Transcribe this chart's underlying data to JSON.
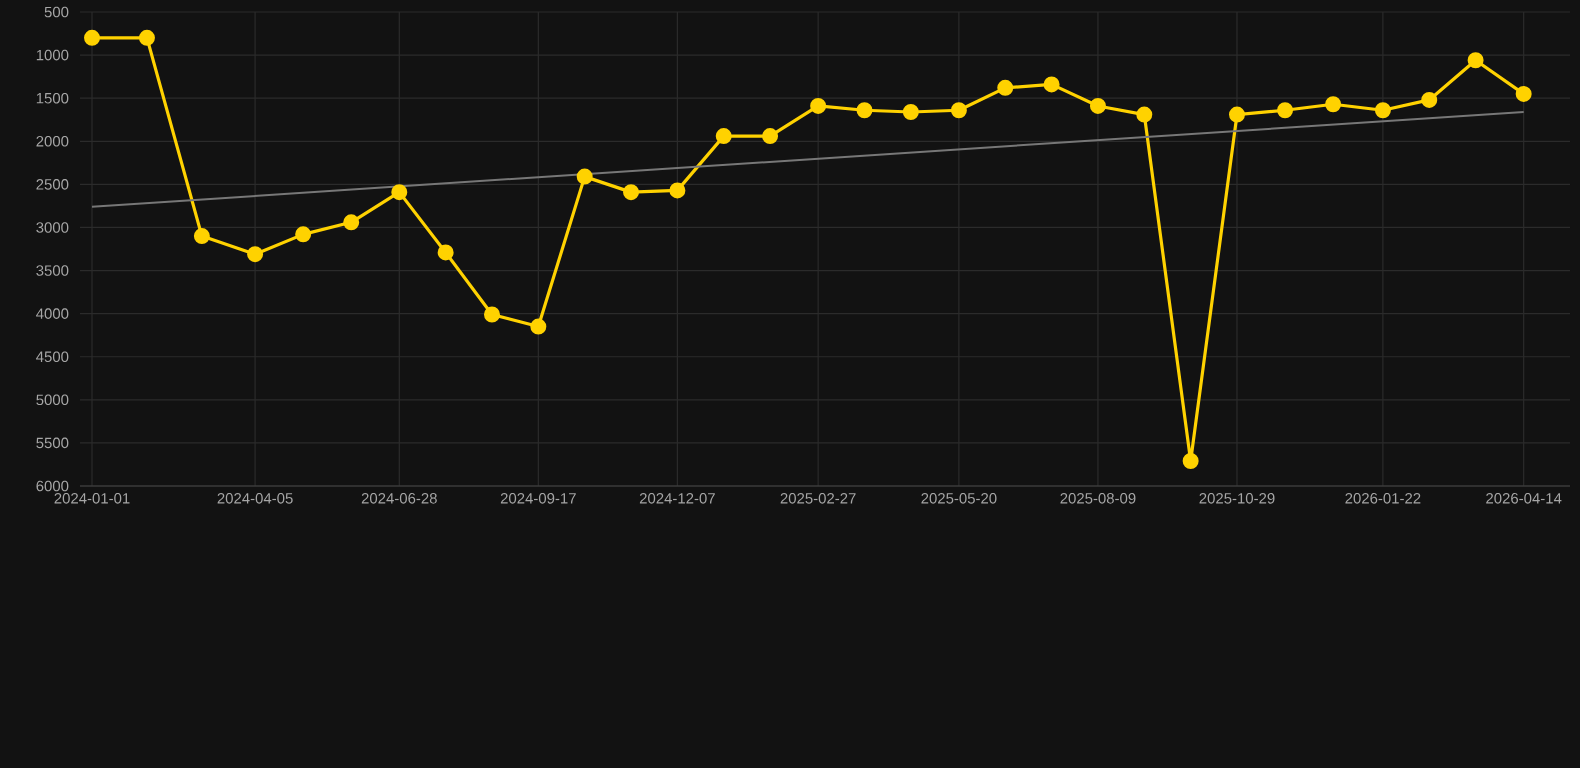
{
  "chart_data": {
    "type": "line",
    "x": [
      "2024-01-01",
      "2024-02-02",
      "2024-03-05",
      "2024-04-05",
      "2024-05-03",
      "2024-05-31",
      "2024-06-28",
      "2024-07-25",
      "2024-08-21",
      "2024-09-17",
      "2024-10-14",
      "2024-11-10",
      "2024-12-07",
      "2025-01-03",
      "2025-01-30",
      "2025-02-27",
      "2025-03-26",
      "2025-04-22",
      "2025-05-20",
      "2025-06-16",
      "2025-07-13",
      "2025-08-09",
      "2025-09-05",
      "2025-10-02",
      "2025-10-29",
      "2025-11-26",
      "2025-12-24",
      "2026-01-22",
      "2026-02-18",
      "2026-03-17",
      "2026-04-14"
    ],
    "series": [
      {
        "color": "#ffd200",
        "marker": "circle",
        "values": [
          800,
          800,
          3100,
          3310,
          3080,
          2940,
          2590,
          3290,
          4010,
          4150,
          2410,
          2590,
          2570,
          1940,
          1940,
          1590,
          1640,
          1660,
          1640,
          1380,
          1340,
          1590,
          1690,
          5710,
          1690,
          1640,
          1570,
          1640,
          1520,
          1060,
          1450
        ]
      },
      {
        "color": "#777777",
        "marker": "none",
        "x": [
          "2024-01-01",
          "2026-04-14"
        ],
        "values": [
          2760,
          1660
        ]
      }
    ],
    "xlim": [
      "2023-12-25",
      "2026-05-11"
    ],
    "xticks": [
      "2024-01-01",
      "2024-04-05",
      "2024-06-28",
      "2024-09-17",
      "2024-12-07",
      "2025-02-27",
      "2025-05-20",
      "2025-08-09",
      "2025-10-29",
      "2026-01-22",
      "2026-04-14"
    ],
    "ylim": [
      6000,
      500
    ],
    "yticks": [
      500,
      1000,
      1500,
      2000,
      2500,
      3000,
      3500,
      4000,
      4500,
      5000,
      5500,
      6000
    ],
    "grid": true
  }
}
